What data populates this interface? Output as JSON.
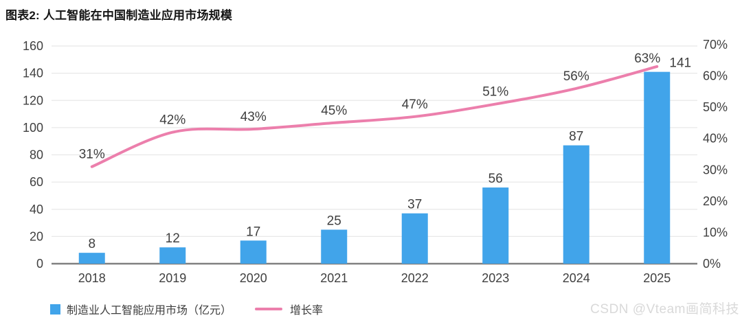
{
  "title": "图表2: 人工智能在中国制造业应用市场规模",
  "watermark": "CSDN @Vteam画简科技",
  "colors": {
    "bar": "#41a4ea",
    "line": "#ec7fac",
    "grid": "#e8e8e8",
    "axis_baseline": "#808080",
    "tick_text": "#3f3f3f",
    "data_label": "#3f3f3f"
  },
  "legend": {
    "items": [
      {
        "label": "制造业人工智能应用市场（亿元）",
        "swatch": "square",
        "color": "#41a4ea"
      },
      {
        "label": "增长率",
        "swatch": "line",
        "color": "#ec7fac"
      }
    ]
  },
  "chart_data": {
    "type": "bar+line",
    "title": "图表2: 人工智能在中国制造业应用市场规模",
    "categories": [
      "2018",
      "2019",
      "2020",
      "2021",
      "2022",
      "2023",
      "2024",
      "2025"
    ],
    "series": [
      {
        "name": "制造业人工智能应用市场（亿元）",
        "type": "bar",
        "axis": "left",
        "color": "#41a4ea",
        "values": [
          8,
          12,
          17,
          25,
          37,
          56,
          87,
          141
        ],
        "labels": [
          "8",
          "12",
          "17",
          "25",
          "37",
          "56",
          "87",
          "141"
        ]
      },
      {
        "name": "增长率",
        "type": "line",
        "axis": "right",
        "color": "#ec7fac",
        "values": [
          31,
          42,
          43,
          45,
          47,
          51,
          56,
          63
        ],
        "labels": [
          "31%",
          "42%",
          "43%",
          "45%",
          "47%",
          "51%",
          "56%",
          "63%"
        ]
      }
    ],
    "left_axis": {
      "min": 0,
      "max": 160,
      "step": 20,
      "ticks": [
        "0",
        "20",
        "40",
        "60",
        "80",
        "100",
        "120",
        "140",
        "160"
      ]
    },
    "right_axis": {
      "min": 0,
      "max": 70,
      "step": 10,
      "ticks": [
        "0%",
        "10%",
        "20%",
        "30%",
        "40%",
        "50%",
        "60%",
        "70%"
      ]
    },
    "grid": true,
    "legend_position": "bottom-left"
  }
}
